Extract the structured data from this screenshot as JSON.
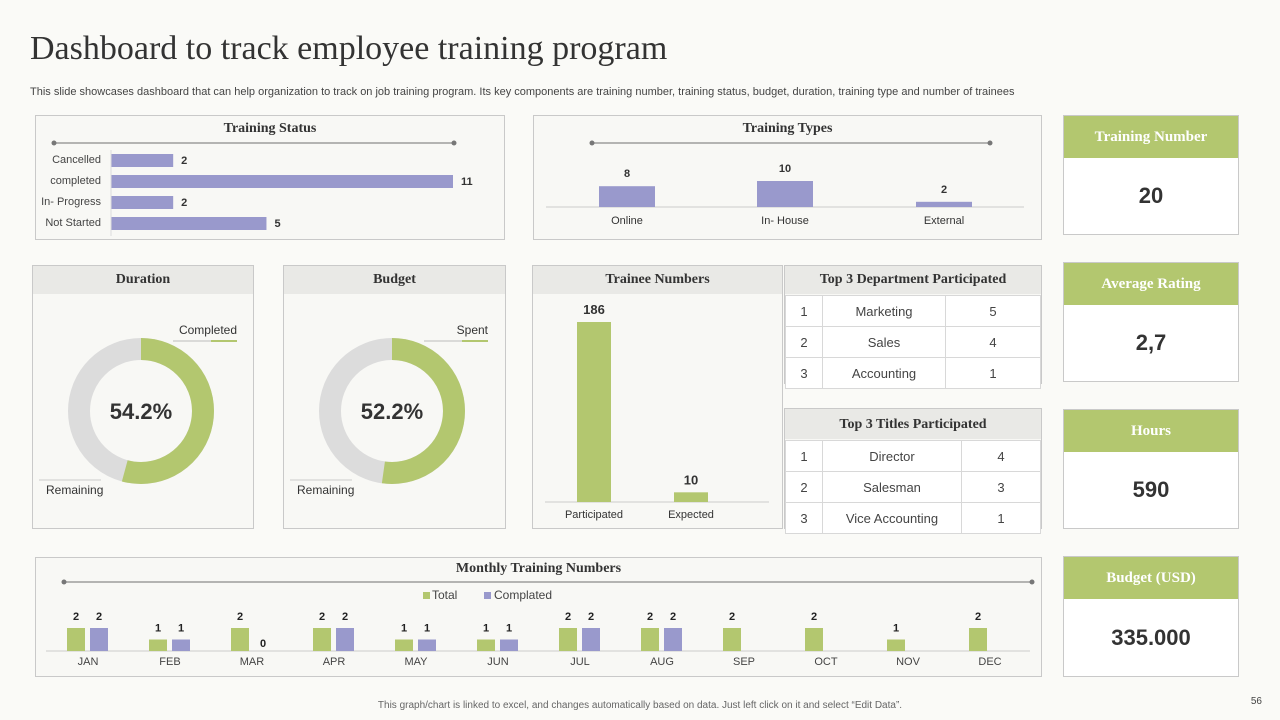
{
  "header": {
    "title": "Dashboard to track employee training program",
    "subtitle": "This slide showcases dashboard that can help organization to track on job training program. Its key components are training number, training status, budget, duration, training type and number of trainees"
  },
  "colors": {
    "green": "#b3c76f",
    "purple": "#9999cc",
    "grey": "#dcdcdc"
  },
  "chart_data": [
    {
      "id": "training_status",
      "type": "bar",
      "orientation": "horizontal",
      "title": "Training Status",
      "categories": [
        "Cancelled",
        "completed",
        "In- Progress",
        "Not Started"
      ],
      "values": [
        2,
        11,
        2,
        5
      ]
    },
    {
      "id": "training_types",
      "type": "bar",
      "title": "Training Types",
      "categories": [
        "Online",
        "In- House",
        "External"
      ],
      "values": [
        8,
        10,
        2
      ]
    },
    {
      "id": "duration",
      "type": "pie",
      "title": "Duration",
      "center_label": "54.2%",
      "labels": [
        "Completed",
        "Remaining"
      ],
      "values": [
        54.2,
        45.8
      ]
    },
    {
      "id": "budget",
      "type": "pie",
      "title": "Budget",
      "center_label": "52.2%",
      "labels": [
        "Spent",
        "Remaining"
      ],
      "values": [
        52.2,
        47.8
      ]
    },
    {
      "id": "trainee_numbers",
      "type": "bar",
      "title": "Trainee Numbers",
      "categories": [
        "Participated",
        "Expected"
      ],
      "values": [
        186,
        10
      ]
    },
    {
      "id": "monthly",
      "type": "bar",
      "title": "Monthly Training Numbers",
      "categories": [
        "JAN",
        "FEB",
        "MAR",
        "APR",
        "MAY",
        "JUN",
        "JUL",
        "AUG",
        "SEP",
        "OCT",
        "NOV",
        "DEC"
      ],
      "series": [
        {
          "name": "Total",
          "values": [
            2,
            1,
            2,
            2,
            1,
            1,
            2,
            2,
            2,
            2,
            1,
            2
          ]
        },
        {
          "name": "Complated",
          "values": [
            2,
            1,
            0,
            2,
            1,
            1,
            2,
            2,
            null,
            null,
            null,
            null
          ]
        }
      ],
      "legend": "top-center"
    }
  ],
  "tables": {
    "departments": {
      "title": "Top 3 Department  Participated",
      "rows": [
        [
          "1",
          "Marketing",
          "5"
        ],
        [
          "2",
          "Sales",
          "4"
        ],
        [
          "3",
          "Accounting",
          "1"
        ]
      ]
    },
    "titles": {
      "title": "Top 3 Titles Participated",
      "rows": [
        [
          "1",
          "Director",
          "4"
        ],
        [
          "2",
          "Salesman",
          "3"
        ],
        [
          "3",
          "Vice Accounting",
          "1"
        ]
      ]
    }
  },
  "kpis": [
    {
      "label": "Training  Number",
      "value": "20"
    },
    {
      "label": "Average Rating",
      "value": "2,7"
    },
    {
      "label": "Hours",
      "value": "590"
    },
    {
      "label": "Budget (USD)",
      "value": "335.000"
    }
  ],
  "footer": "This graph/chart is linked to excel, and changes automatically based on data. Just left click on it and select “Edit Data”.",
  "page_number": "56"
}
